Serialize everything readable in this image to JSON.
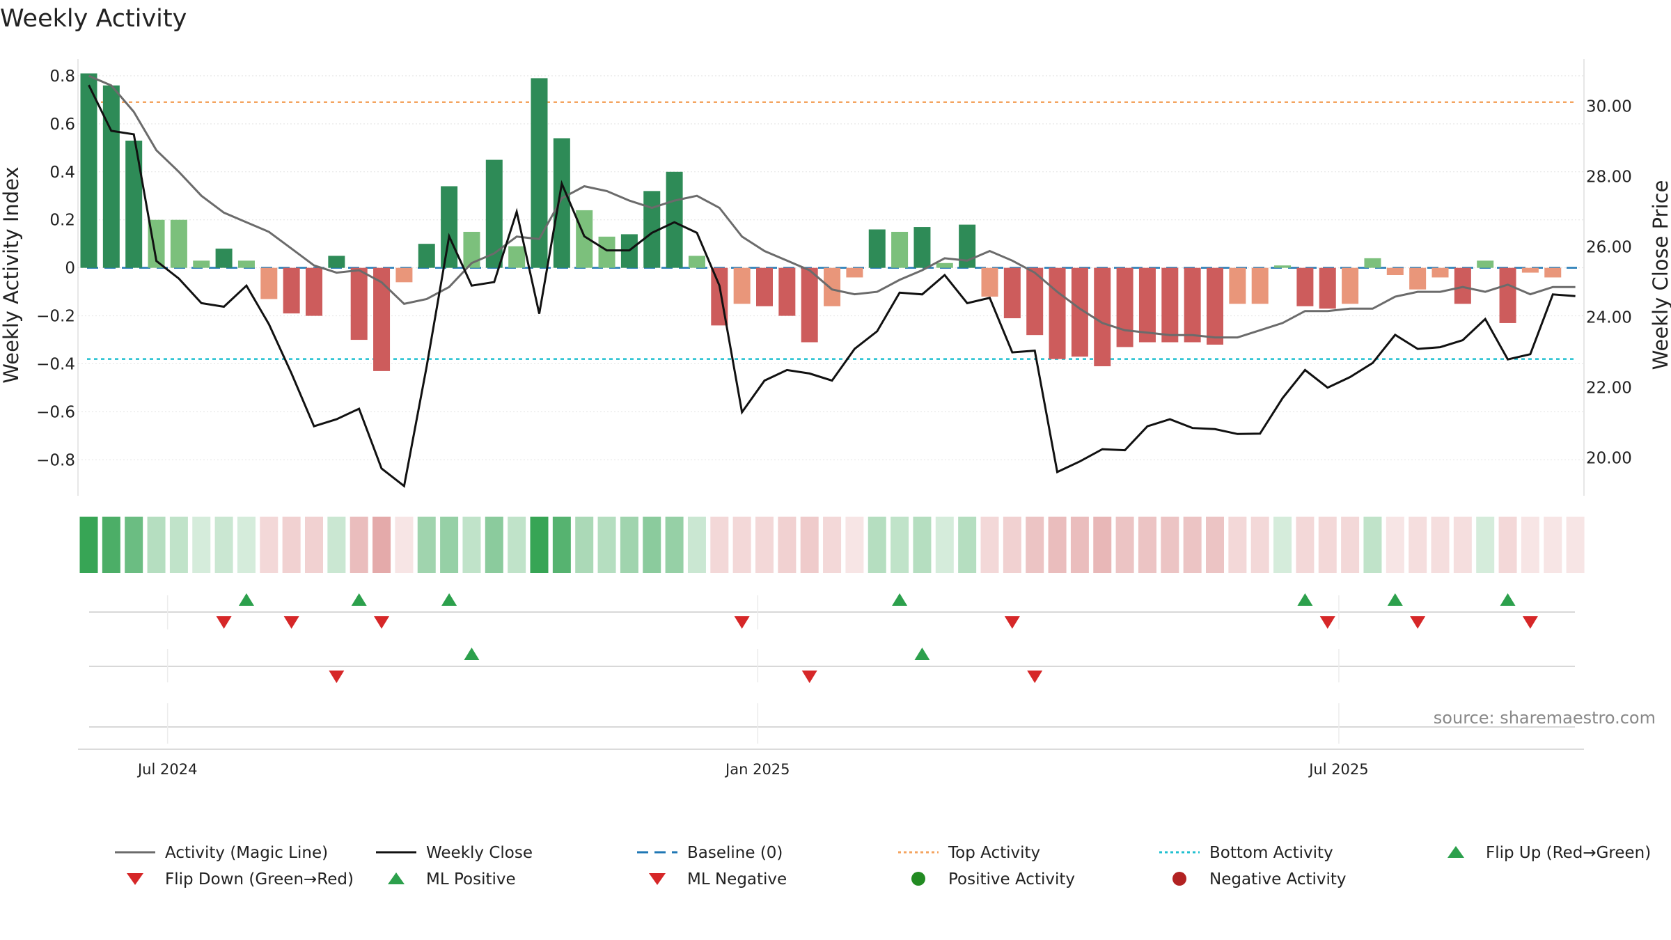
{
  "chart_data": {
    "type": "bar+line",
    "title": "Weekly Activity",
    "ylabel_left": "Weekly Activity Index",
    "ylabel_right": "Weekly Close Price",
    "ylim_left": [
      -0.88,
      0.82
    ],
    "ylim_right": [
      19.4,
      31.0
    ],
    "yticks_left": [
      "0.8",
      "0.6",
      "0.4",
      "0.2",
      "0",
      "−0.2",
      "−0.4",
      "−0.6",
      "−0.8"
    ],
    "yticks_left_values": [
      0.8,
      0.6,
      0.4,
      0.2,
      0,
      -0.2,
      -0.4,
      -0.6,
      -0.8
    ],
    "yticks_right": [
      "30.00",
      "28.00",
      "26.00",
      "24.00",
      "22.00",
      "20.00"
    ],
    "yticks_right_values": [
      30,
      28,
      26,
      24,
      22,
      20
    ],
    "x_date_labels": [
      "Jul 2024",
      "Jan 2025",
      "Jul 2025"
    ],
    "x_date_label_weeks": [
      3.5,
      29.7,
      55.5
    ],
    "weeks": 67,
    "activity": [
      0.81,
      0.76,
      0.53,
      0.2,
      0.2,
      0.03,
      0.08,
      0.03,
      -0.13,
      -0.19,
      -0.2,
      0.05,
      -0.3,
      -0.43,
      -0.06,
      0.1,
      0.34,
      0.15,
      0.45,
      0.09,
      0.79,
      0.54,
      0.24,
      0.13,
      0.14,
      0.32,
      0.4,
      0.05,
      -0.24,
      -0.15,
      -0.16,
      -0.2,
      -0.31,
      -0.16,
      -0.04,
      0.16,
      0.15,
      0.17,
      0.02,
      0.18,
      -0.12,
      -0.21,
      -0.28,
      -0.38,
      -0.37,
      -0.41,
      -0.33,
      -0.31,
      -0.31,
      -0.31,
      -0.32,
      -0.15,
      -0.15,
      0.01,
      -0.16,
      -0.17,
      -0.15,
      0.04,
      -0.03,
      -0.09,
      -0.04,
      -0.15,
      0.03,
      -0.23,
      -0.02,
      -0.04,
      0
    ],
    "magic_line": [
      0.8,
      0.76,
      0.65,
      0.49,
      0.4,
      0.3,
      0.23,
      0.19,
      0.15,
      0.08,
      0.01,
      -0.02,
      -0.01,
      -0.06,
      -0.15,
      -0.13,
      -0.08,
      0.02,
      0.06,
      0.13,
      0.12,
      0.29,
      0.34,
      0.32,
      0.28,
      0.25,
      0.28,
      0.3,
      0.25,
      0.13,
      0.07,
      0.03,
      -0.01,
      -0.09,
      -0.11,
      -0.1,
      -0.05,
      -0.01,
      0.04,
      0.03,
      0.07,
      0.03,
      -0.02,
      -0.1,
      -0.17,
      -0.23,
      -0.26,
      -0.27,
      -0.28,
      -0.28,
      -0.29,
      -0.29,
      -0.26,
      -0.23,
      -0.18,
      -0.18,
      -0.17,
      -0.17,
      -0.12,
      -0.1,
      -0.1,
      -0.08,
      -0.1,
      -0.07,
      -0.11,
      -0.08,
      -0.08
    ],
    "weekly_close": [
      30.6,
      29.3,
      29.2,
      25.6,
      25.1,
      24.4,
      24.3,
      24.9,
      23.8,
      22.4,
      20.9,
      21.1,
      21.4,
      19.7,
      19.2,
      22.6,
      26.3,
      24.9,
      25.0,
      27.0,
      24.1,
      27.8,
      26.3,
      25.9,
      25.9,
      26.4,
      26.7,
      26.4,
      24.9,
      21.3,
      22.2,
      22.5,
      22.4,
      22.2,
      23.1,
      23.6,
      24.7,
      24.65,
      25.2,
      24.4,
      24.55,
      23.0,
      23.05,
      19.6,
      19.9,
      20.25,
      20.22,
      20.9,
      21.1,
      20.85,
      20.82,
      20.68,
      20.69,
      21.7,
      22.5,
      22.0,
      22.3,
      22.7,
      23.5,
      23.1,
      23.15,
      23.35,
      23.95,
      22.8,
      22.95,
      24.65,
      24.6
    ],
    "baseline": 0,
    "top_activity": 0.69,
    "bottom_activity": -0.38,
    "strip_shades": [
      0.95,
      0.85,
      0.7,
      0.35,
      0.3,
      0.2,
      0.25,
      0.2,
      0.3,
      0.35,
      0.35,
      0.25,
      0.5,
      0.65,
      0.2,
      0.45,
      0.5,
      0.3,
      0.55,
      0.3,
      0.95,
      0.8,
      0.4,
      0.35,
      0.45,
      0.55,
      0.5,
      0.25,
      0.3,
      0.3,
      0.3,
      0.35,
      0.4,
      0.3,
      0.2,
      0.35,
      0.3,
      0.35,
      0.2,
      0.35,
      0.3,
      0.35,
      0.45,
      0.5,
      0.5,
      0.55,
      0.45,
      0.45,
      0.45,
      0.45,
      0.45,
      0.3,
      0.3,
      0.2,
      0.3,
      0.3,
      0.3,
      0.3,
      0.2,
      0.25,
      0.25,
      0.25,
      0.2,
      0.3,
      0.2,
      0.2,
      0.2
    ],
    "markers_row1_flip_up_weeks": [
      7,
      12,
      16,
      36,
      54,
      58,
      63
    ],
    "markers_row1_flip_down_weeks": [
      6,
      9,
      13,
      29,
      41,
      55,
      59,
      64
    ],
    "markers_row2_ml_positive_weeks": [
      17,
      37
    ],
    "markers_row2_ml_negative_weeks": [
      11,
      32,
      42
    ],
    "colors": {
      "strong_positive": "#2e8b57",
      "light_positive": "#7cc07c",
      "strong_negative": "#cd5c5c",
      "light_negative": "#e9967a",
      "magic_line": "#6b6b6b",
      "close_line": "#111111",
      "baseline": "#1f77b4",
      "top": "#f4a460",
      "bottom": "#20c0d0",
      "up_marker": "#2ca04c",
      "down_marker": "#d62728",
      "pos_dot": "#228b22",
      "neg_dot": "#b22222"
    },
    "legend": [
      {
        "label": "Activity (Magic Line)",
        "kind": "line",
        "style": "solid",
        "color": "#6b6b6b"
      },
      {
        "label": "Weekly Close",
        "kind": "line",
        "style": "solid",
        "color": "#111111"
      },
      {
        "label": "Baseline (0)",
        "kind": "line",
        "style": "dash",
        "color": "#1f77b4"
      },
      {
        "label": "Top Activity",
        "kind": "line",
        "style": "dot",
        "color": "#f4a460"
      },
      {
        "label": "Bottom Activity",
        "kind": "line",
        "style": "dot",
        "color": "#20c0d0"
      },
      {
        "label": "Flip Up (Red→Green)",
        "kind": "tri-up",
        "color": "#2ca04c"
      },
      {
        "label": "Flip Down (Green→Red)",
        "kind": "tri-down",
        "color": "#d62728"
      },
      {
        "label": "ML Positive",
        "kind": "tri-up",
        "color": "#2ca04c"
      },
      {
        "label": "ML Negative",
        "kind": "tri-down",
        "color": "#d62728"
      },
      {
        "label": "Positive Activity",
        "kind": "dot",
        "color": "#228b22"
      },
      {
        "label": "Negative Activity",
        "kind": "dot",
        "color": "#b22222"
      }
    ],
    "source": "source: sharemaestro.com"
  }
}
